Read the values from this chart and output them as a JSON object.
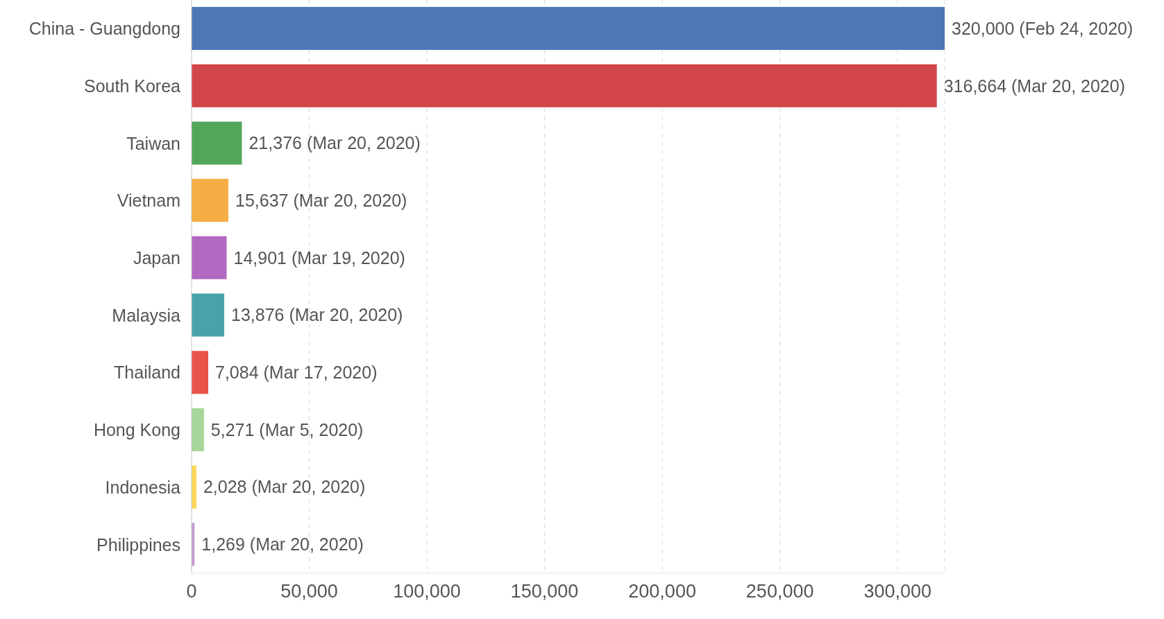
{
  "chart_data": {
    "type": "bar",
    "orientation": "horizontal",
    "categories": [
      "China - Guangdong",
      "South Korea",
      "Taiwan",
      "Vietnam",
      "Japan",
      "Malaysia",
      "Thailand",
      "Hong Kong",
      "Indonesia",
      "Philippines"
    ],
    "values": [
      320000,
      316664,
      21376,
      15637,
      14901,
      13876,
      7084,
      5271,
      2028,
      1269
    ],
    "colors": [
      "#4c78b5",
      "#d24548",
      "#52a65a",
      "#f5ae45",
      "#b06ac2",
      "#49a2aa",
      "#e8534a",
      "#a7d79a",
      "#fcd75a",
      "#c39bcf"
    ],
    "value_labels": [
      "320,000 (Feb 24, 2020)",
      "316,664 (Mar 20, 2020)",
      "21,376 (Mar 20, 2020)",
      "15,637 (Mar 20, 2020)",
      "14,901 (Mar 19, 2020)",
      "13,876 (Mar 20, 2020)",
      "7,084 (Mar 17, 2020)",
      "5,271 (Mar 5, 2020)",
      "2,028 (Mar 20, 2020)",
      "1,269 (Mar 20, 2020)"
    ],
    "xlim": [
      0,
      320000
    ],
    "xticks": [
      0,
      {
        "value": 50000,
        "label": "50,000"
      },
      {
        "value": 100000,
        "label": "100,000"
      },
      {
        "value": 150000,
        "label": "150,000"
      },
      {
        "value": 200000,
        "label": "200,000"
      },
      {
        "value": 250000,
        "label": "250,000"
      },
      {
        "value": 300000,
        "label": "300,000"
      }
    ],
    "grid": "x",
    "legend": false
  }
}
